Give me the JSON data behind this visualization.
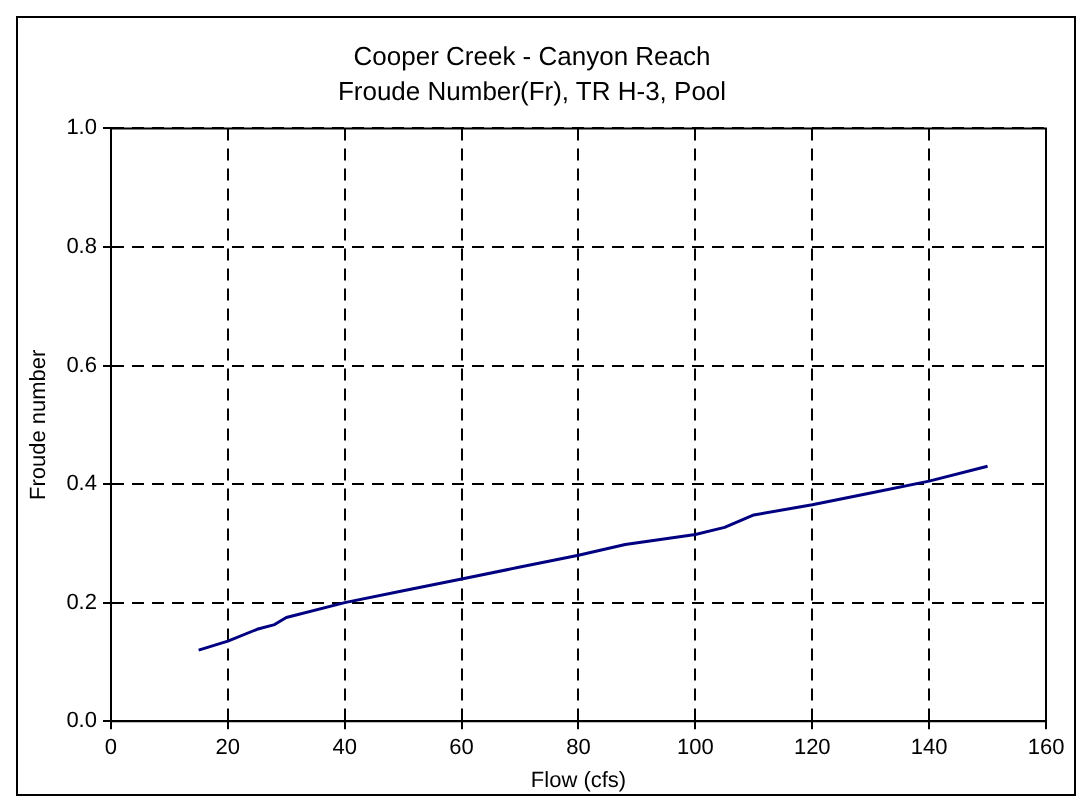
{
  "chart_data": {
    "type": "line",
    "title": "Cooper Creek - Canyon Reach",
    "subtitle": "Froude Number(Fr), TR H-3, Pool",
    "xlabel": "Flow (cfs)",
    "ylabel": "Froude number",
    "x": [
      15,
      20,
      25,
      28,
      30,
      40,
      50,
      60,
      70,
      80,
      88,
      100,
      105,
      110,
      120,
      130,
      140,
      150
    ],
    "series": [
      {
        "color": "#000080",
        "values": [
          0.12,
          0.135,
          0.155,
          0.163,
          0.175,
          0.2,
          0.22,
          0.24,
          0.26,
          0.28,
          0.298,
          0.315,
          0.327,
          0.348,
          0.365,
          0.385,
          0.405,
          0.43
        ]
      }
    ],
    "xlim": [
      0,
      160
    ],
    "xticks": [
      0,
      20,
      40,
      60,
      80,
      100,
      120,
      140,
      160
    ],
    "ylim": [
      0,
      1
    ],
    "yticks": [
      {
        "value": 0,
        "label": "0.0"
      },
      0.2,
      0.4,
      0.6,
      0.8,
      {
        "value": 1,
        "label": "1.0"
      }
    ],
    "grid": true,
    "legend": false,
    "marker": "none",
    "line_style": "solid"
  }
}
